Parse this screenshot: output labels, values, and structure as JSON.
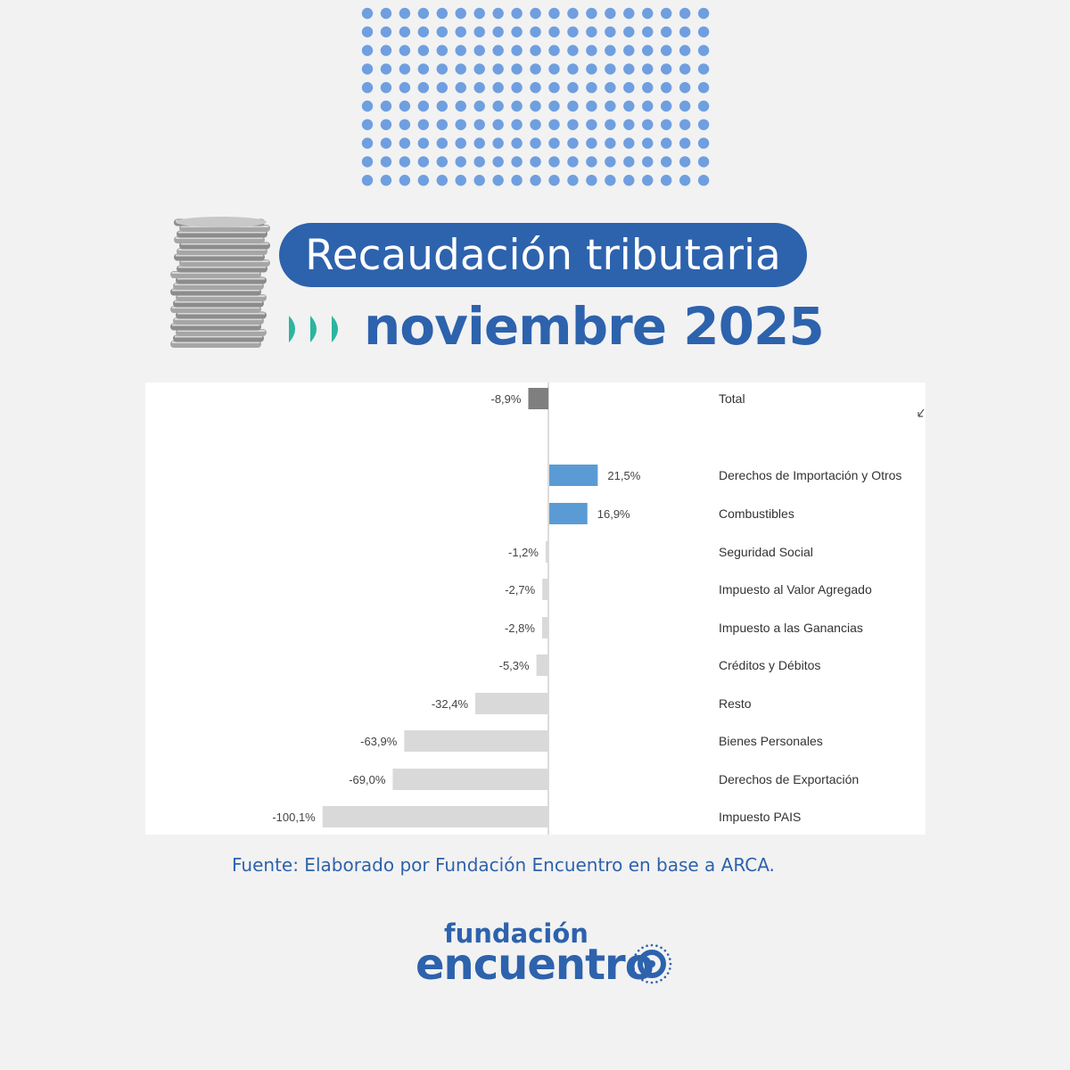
{
  "header": {
    "title": "Recaudación tributaria",
    "subtitle": "noviembre 2025"
  },
  "colors": {
    "brand": "#2d62ad",
    "accent_arrows": "#2bb5a0",
    "dots": "#6f9fe0",
    "bar_total": "#7f7f7f",
    "bar_positive": "#5b9bd5",
    "bar_negative": "#d9d9d9"
  },
  "icons": [
    "coin-stack-icon",
    "triple-chevron-right-icon",
    "expand-arrow-icon"
  ],
  "chart_data": {
    "type": "bar",
    "orientation": "horizontal",
    "categories": [
      "Total",
      "Derechos de Importación y Otros",
      "Combustibles",
      "Seguridad Social",
      "Impuesto al Valor Agregado",
      "Impuesto a las Ganancias",
      "Créditos y Débitos",
      "Resto",
      "Bienes Personales",
      "Derechos de Exportación",
      "Impuesto PAIS"
    ],
    "values": [
      -8.9,
      21.5,
      16.9,
      -1.2,
      -2.7,
      -2.8,
      -5.3,
      -32.4,
      -63.9,
      -69.0,
      -100.1
    ],
    "labels": [
      "-8,9%",
      "21,5%",
      "16,9%",
      "-1,2%",
      "-2,7%",
      "-2,8%",
      "-5,3%",
      "-32,4%",
      "-63,9%",
      "-69,0%",
      "-100,1%"
    ],
    "unit": "%",
    "grid": false,
    "legend": "none"
  },
  "footer": {
    "source": "Fuente: Elaborado por Fundación Encuentro en base a ARCA.",
    "logo_line1": "fundación",
    "logo_line2": "encuentro"
  }
}
